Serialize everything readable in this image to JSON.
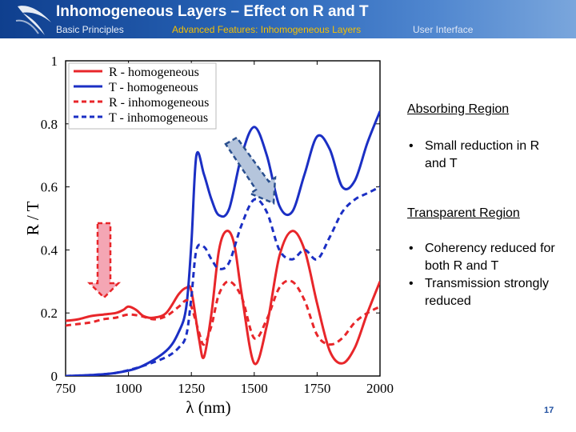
{
  "header": {
    "title": "Inhomogeneous Layers – Effect on R and T",
    "nav": [
      "Basic Principles",
      "Advanced Features: Inhomogeneous Layers",
      "User Interface"
    ]
  },
  "colors": {
    "red": "#e8262a",
    "blue": "#1b2fc4",
    "arrow_red": "#f4a6b4",
    "arrow_blue": "#b5c5dc"
  },
  "chart_data": {
    "type": "line",
    "xlabel": "λ (nm)",
    "ylabel": "R / T",
    "xlim": [
      750,
      2000
    ],
    "ylim": [
      0,
      1
    ],
    "x_ticks": [
      750,
      1000,
      1250,
      1500,
      1750,
      2000
    ],
    "y_ticks": [
      0,
      0.2,
      0.4,
      0.6,
      0.8,
      1
    ],
    "y_tick_labels": [
      "0",
      "0.2",
      "0.4",
      "0.6",
      "0.8",
      "1"
    ],
    "legend_position": "top-left",
    "series": [
      {
        "name": "R - homogeneous",
        "color": "#e8262a",
        "dash": "solid",
        "x": [
          750,
          800,
          850,
          900,
          950,
          980,
          1000,
          1030,
          1060,
          1100,
          1150,
          1200,
          1230,
          1250,
          1280,
          1300,
          1330,
          1360,
          1390,
          1420,
          1450,
          1500,
          1550,
          1600,
          1650,
          1700,
          1750,
          1800,
          1850,
          1900,
          1950,
          2000
        ],
        "y": [
          0.175,
          0.18,
          0.19,
          0.195,
          0.2,
          0.21,
          0.22,
          0.21,
          0.19,
          0.185,
          0.2,
          0.26,
          0.28,
          0.27,
          0.12,
          0.06,
          0.2,
          0.4,
          0.46,
          0.42,
          0.26,
          0.04,
          0.16,
          0.38,
          0.46,
          0.4,
          0.23,
          0.08,
          0.04,
          0.09,
          0.2,
          0.3
        ]
      },
      {
        "name": "T - homogeneous",
        "color": "#1b2fc4",
        "dash": "solid",
        "x": [
          750,
          850,
          950,
          1050,
          1150,
          1200,
          1230,
          1250,
          1270,
          1300,
          1330,
          1360,
          1400,
          1450,
          1500,
          1550,
          1600,
          1650,
          1700,
          1750,
          1800,
          1850,
          1900,
          1950,
          2000
        ],
        "y": [
          0,
          0.003,
          0.01,
          0.03,
          0.08,
          0.14,
          0.22,
          0.42,
          0.7,
          0.64,
          0.56,
          0.51,
          0.53,
          0.7,
          0.79,
          0.7,
          0.54,
          0.52,
          0.64,
          0.76,
          0.72,
          0.6,
          0.62,
          0.74,
          0.84
        ]
      },
      {
        "name": "R - inhomogeneous",
        "color": "#e8262a",
        "dash": "dashed",
        "x": [
          750,
          800,
          850,
          900,
          950,
          1000,
          1050,
          1100,
          1150,
          1200,
          1230,
          1250,
          1280,
          1300,
          1330,
          1360,
          1400,
          1450,
          1500,
          1550,
          1600,
          1650,
          1700,
          1750,
          1800,
          1850,
          1900,
          1950,
          2000
        ],
        "y": [
          0.16,
          0.165,
          0.17,
          0.18,
          0.185,
          0.195,
          0.19,
          0.18,
          0.19,
          0.22,
          0.24,
          0.22,
          0.14,
          0.1,
          0.16,
          0.26,
          0.3,
          0.25,
          0.12,
          0.18,
          0.28,
          0.3,
          0.24,
          0.13,
          0.1,
          0.12,
          0.17,
          0.2,
          0.22
        ]
      },
      {
        "name": "T - inhomogeneous",
        "color": "#1b2fc4",
        "dash": "dashed",
        "x": [
          750,
          850,
          950,
          1050,
          1150,
          1200,
          1230,
          1250,
          1270,
          1300,
          1330,
          1360,
          1400,
          1450,
          1500,
          1550,
          1600,
          1650,
          1700,
          1750,
          1800,
          1850,
          1900,
          1950,
          2000
        ],
        "y": [
          0,
          0.003,
          0.01,
          0.03,
          0.06,
          0.09,
          0.13,
          0.25,
          0.4,
          0.41,
          0.37,
          0.34,
          0.36,
          0.48,
          0.56,
          0.52,
          0.4,
          0.37,
          0.4,
          0.37,
          0.44,
          0.52,
          0.56,
          0.58,
          0.6
        ]
      }
    ]
  },
  "annotations": {
    "absorbing_title": "Absorbing Region",
    "absorbing_bullets": [
      "Small reduction in R and T"
    ],
    "transparent_title": "Transparent Region",
    "transparent_bullets": [
      "Coherency reduced for both R and T",
      "Transmission strongly reduced"
    ]
  },
  "page_number": "17"
}
